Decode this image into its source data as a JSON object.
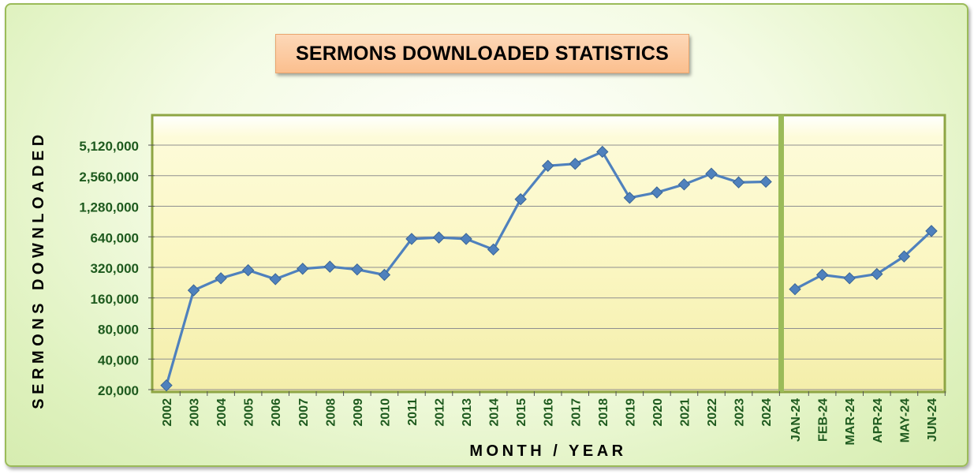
{
  "chart_data": {
    "type": "line",
    "title": "SERMONS DOWNLOADED STATISTICS",
    "xlabel": "MONTH / YEAR",
    "ylabel": "SERMONS DOWNLOADED",
    "yscale": "log2",
    "ylim": [
      20000,
      5120000
    ],
    "yticks": [
      20000,
      40000,
      80000,
      160000,
      320000,
      640000,
      1280000,
      2560000,
      5120000
    ],
    "ytick_labels": [
      "20,000",
      "40,000",
      "80,000",
      "160,000",
      "320,000",
      "640,000",
      "1,280,000",
      "2,560,000",
      "5,120,000"
    ],
    "grid": true,
    "legend": "none",
    "series_color": "#4f81bd",
    "panels": [
      {
        "name": "yearly",
        "categories": [
          "2002",
          "2003",
          "2004",
          "2005",
          "2006",
          "2007",
          "2008",
          "2009",
          "2010",
          "2011",
          "2012",
          "2013",
          "2014",
          "2015",
          "2016",
          "2017",
          "2018",
          "2019",
          "2020",
          "2021",
          "2022",
          "2023",
          "2024"
        ],
        "values": [
          22000,
          190000,
          250000,
          300000,
          245000,
          310000,
          325000,
          305000,
          270000,
          610000,
          630000,
          610000,
          480000,
          1500000,
          3200000,
          3350000,
          4400000,
          1550000,
          1750000,
          2100000,
          2680000,
          2200000,
          2230000
        ]
      },
      {
        "name": "monthly",
        "categories": [
          "JAN-24",
          "FEB-24",
          "MAR-24",
          "APR-24",
          "MAY-24",
          "JUN-24"
        ],
        "values": [
          195000,
          270000,
          250000,
          275000,
          410000,
          730000
        ]
      }
    ]
  }
}
